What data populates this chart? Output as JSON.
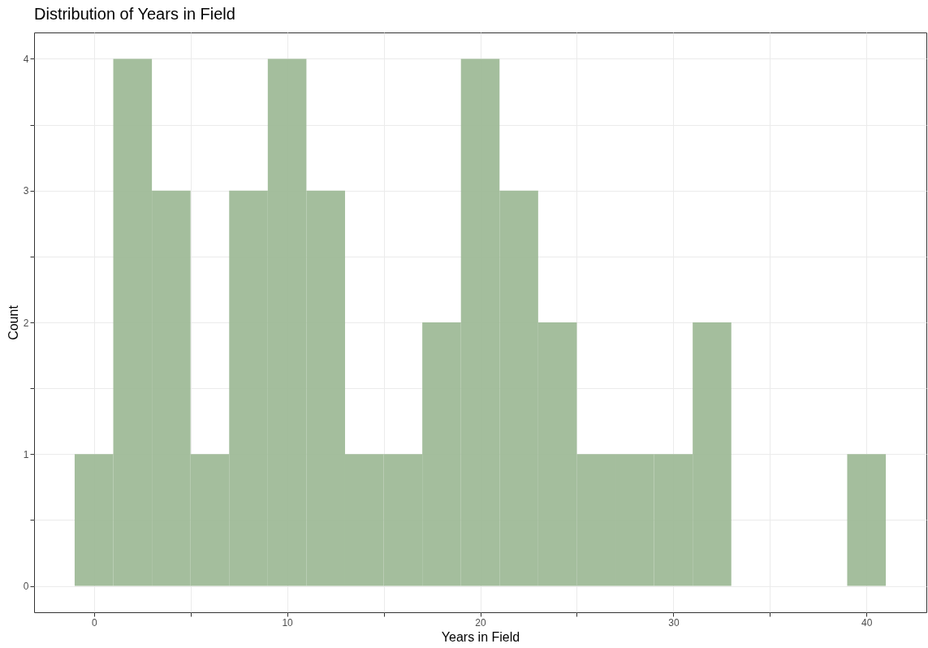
{
  "chart_data": {
    "type": "histogram",
    "title": "Distribution of Years in Field",
    "xlabel": "Years in Field",
    "ylabel": "Count",
    "bins": [
      -1,
      1,
      3,
      5,
      7,
      9,
      11,
      13,
      15,
      17,
      19,
      21,
      23,
      25,
      27,
      29,
      31,
      33,
      35,
      37,
      39,
      41
    ],
    "values": [
      1,
      4,
      3,
      1,
      3,
      4,
      3,
      1,
      1,
      2,
      4,
      3,
      2,
      1,
      1,
      1,
      2,
      0,
      0,
      0,
      1
    ],
    "color": "#9fbb98",
    "xlim": [
      -3.1,
      43.1
    ],
    "ylim": [
      -0.2,
      4.2
    ],
    "xticks": [
      0,
      {
        "value": 5,
        "label": null
      },
      10,
      {
        "value": 15,
        "label": null
      },
      20,
      {
        "value": 25,
        "label": null
      },
      30,
      {
        "value": 35,
        "label": null
      },
      40
    ],
    "yticks": [
      0,
      {
        "value": 0.5,
        "label": null
      },
      1,
      {
        "value": 1.5,
        "label": null
      },
      2,
      {
        "value": 2.5,
        "label": null
      },
      3,
      {
        "value": 3.5,
        "label": null
      },
      4
    ],
    "grid": true
  }
}
